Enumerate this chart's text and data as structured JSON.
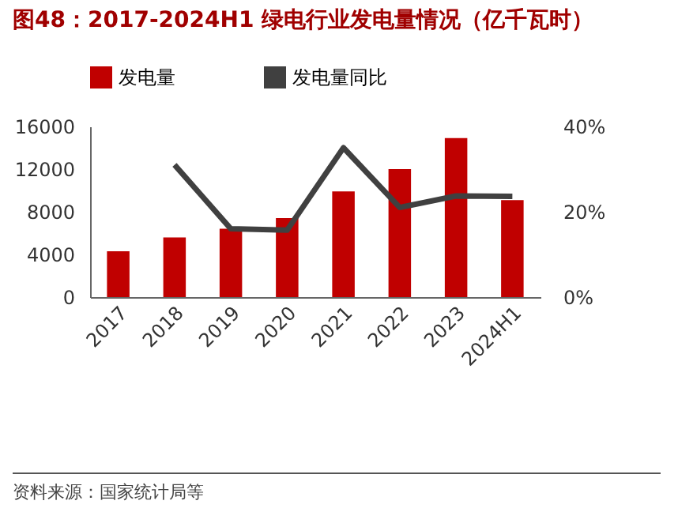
{
  "chart_data": {
    "type": "bar",
    "title": "图48：2017-2024H1 绿电行业发电量情况（亿千瓦时）",
    "categories": [
      "2017",
      "2018",
      "2019",
      "2020",
      "2021",
      "2022",
      "2023",
      "2024H1"
    ],
    "series": [
      {
        "name": "发电量",
        "color": "#c00000",
        "values": [
          4300,
          5600,
          6400,
          7400,
          9900,
          12000,
          14900,
          9100
        ]
      },
      {
        "name": "发电量同比",
        "type": "line",
        "axis": "y2",
        "color": "#404040",
        "values": [
          null,
          31,
          16,
          15.7,
          35,
          21,
          23.7,
          23.6
        ]
      }
    ],
    "ylim": [
      0,
      16000
    ],
    "yticks": [
      0,
      4000,
      8000,
      12000,
      16000
    ],
    "y2lim": [
      0,
      40
    ],
    "y2ticks": [
      {
        "value": 0,
        "label": "0%"
      },
      {
        "value": 20,
        "label": "20%"
      },
      {
        "value": 40,
        "label": "40%"
      }
    ],
    "legend": "top",
    "grid": false,
    "marker": "none",
    "line_style": "solid",
    "annotations": [
      "资料来源：国家统计局等"
    ]
  }
}
